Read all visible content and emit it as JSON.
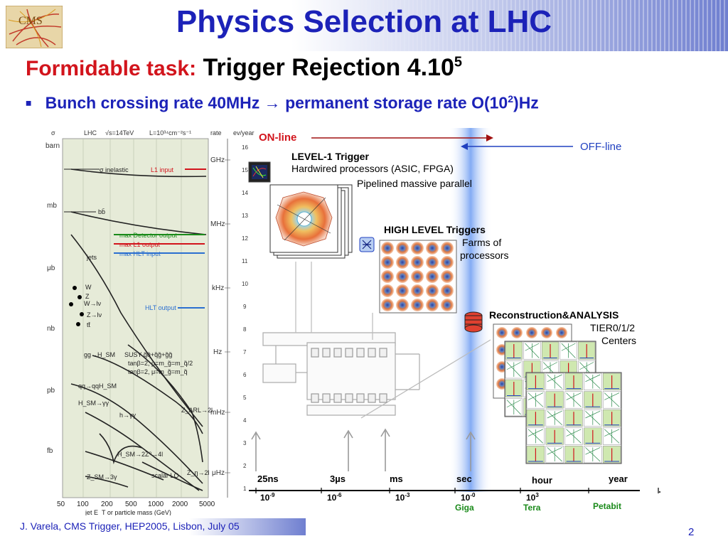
{
  "title": "Physics Selection at LHC",
  "subtitle": {
    "highlight": "Formidable task:",
    "main": "Trigger Rejection 4.10",
    "exp": "5"
  },
  "bullet": {
    "text1": "Bunch crossing rate 40MHz",
    "text2": "permanent storage rate O(10",
    "exp": "2",
    "text3": ")Hz"
  },
  "logo": {
    "text": "CMS"
  },
  "left_chart": {
    "header": [
      "σ",
      "LHC",
      "√s=14TeV",
      "L=10³⁴cm⁻²s⁻¹",
      "rate",
      "ev/year"
    ],
    "units": [
      "barn",
      "mb",
      "μb",
      "nb",
      "pb",
      "fb"
    ],
    "rates": [
      "GHz",
      "MHz",
      "kHz",
      "Hz",
      "mHz",
      "μHz"
    ],
    "evyear": [
      "16",
      "15",
      "14",
      "13",
      "12",
      "11",
      "10",
      "9",
      "8",
      "7",
      "6",
      "5",
      "4",
      "3",
      "2",
      "1"
    ],
    "processes": [
      "σ inelastic",
      "bb̄",
      "jets",
      "W",
      "Z",
      "W→lν",
      "Z→lν",
      "tt̄",
      "gg→H_SM",
      "SUSY q̃q̃+q̃g̃+g̃g̃",
      "tanβ=2, μ=m_g̃=m_q̃/2",
      "tanβ=2, μ=m_g̃=m_q̃",
      "qq→qqH_SM",
      "H_SM→γγ",
      "h→γγ",
      "Z_ARL→2l",
      "H_SM→2Z⁰→4l",
      "Z_SM→3γ",
      "scalar LQ",
      "Z_η→2l"
    ],
    "arrows": [
      "L1 input",
      "max Detector output",
      "max L1 output",
      "max HLT input",
      "HLT output"
    ],
    "xticks": [
      "50",
      "100",
      "200",
      "500",
      "1000",
      "2000",
      "5000"
    ],
    "xlabel": "jet E_T or particle mass (GeV)"
  },
  "diagram": {
    "online": "ON-line",
    "offline": "OFF-line",
    "l1_title": "LEVEL-1 Trigger",
    "l1_line1": "Hardwired processors  (ASIC, FPGA)",
    "l1_line2": "Pipelined massive parallel",
    "hlt_title": "HIGH LEVEL Triggers",
    "hlt_line1": "Farms of",
    "hlt_line2": "processors",
    "reco_title": "Reconstruction&ANALYSIS",
    "reco_line1": "TIER0/1/2",
    "reco_line2": "Centers",
    "time_labels": [
      "25ns",
      "3µs",
      "ms",
      "sec",
      "hour",
      "year"
    ],
    "scale": [
      {
        "base": "10",
        "exp": "-9",
        "unit": ""
      },
      {
        "base": "10",
        "exp": "-6",
        "unit": ""
      },
      {
        "base": "10",
        "exp": "-3",
        "unit": ""
      },
      {
        "base": "10",
        "exp": "-0",
        "unit": "Giga"
      },
      {
        "base": "10",
        "exp": "3",
        "unit": "Tera"
      },
      {
        "base": "",
        "exp": "",
        "unit": "Petabit"
      }
    ]
  },
  "footer": "J. Varela, CMS Trigger, HEP2005, Lisbon, July 05",
  "page_number": "2",
  "colors": {
    "title_blue": "#1c22b8",
    "red": "#d2141c",
    "green": "#1a8a1a",
    "arrow_blue": "#2040c0"
  }
}
